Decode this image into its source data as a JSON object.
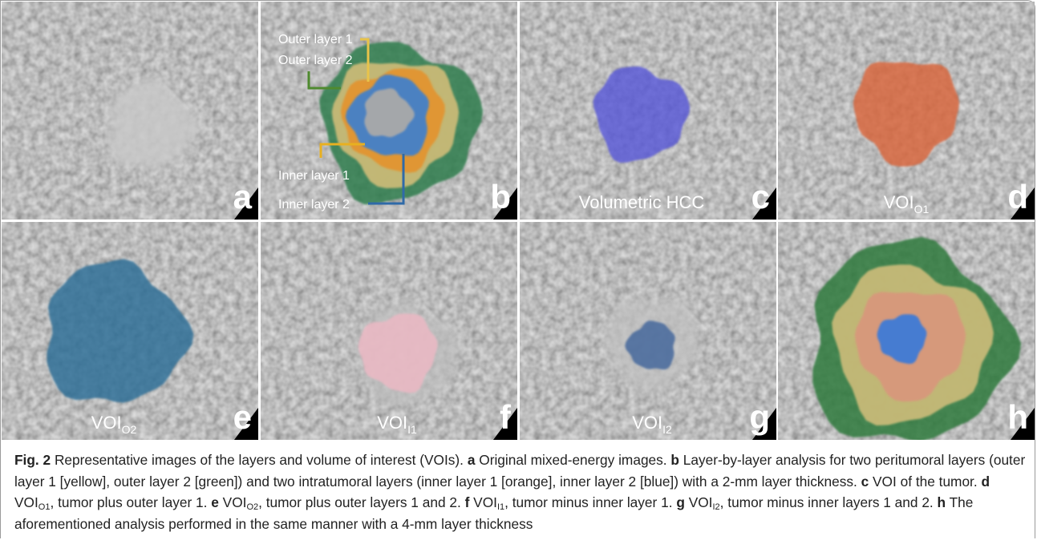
{
  "figure": {
    "panels": [
      {
        "letter": "a"
      },
      {
        "letter": "b",
        "annotations": [
          "Outer layer 1",
          "Outer layer 2",
          "Inner layer 1",
          "Inner layer 2"
        ]
      },
      {
        "letter": "c",
        "label": "Volumetric HCC"
      },
      {
        "letter": "d",
        "label": {
          "base": "VOI",
          "sub": "O1"
        }
      },
      {
        "letter": "e",
        "label": {
          "base": "VOI",
          "sub": "O2"
        }
      },
      {
        "letter": "f",
        "label": {
          "base": "VOI",
          "sub": "I1"
        }
      },
      {
        "letter": "g",
        "label": {
          "base": "VOI",
          "sub": "I2"
        }
      },
      {
        "letter": "h"
      }
    ]
  },
  "caption": {
    "label": "Fig. 2",
    "intro": "Representative images of the layers and volume of interest (VOIs).",
    "items": [
      {
        "letter": "a",
        "text": "Original mixed-energy images."
      },
      {
        "letter": "b",
        "text": "Layer-by-layer analysis for two peritumoral layers (outer layer 1 [yellow], outer layer 2 [green]) and two intratumoral layers (inner layer 1 [orange], inner layer 2 [blue]) with a 2-mm layer thickness."
      },
      {
        "letter": "c",
        "text": "VOI of the tumor."
      },
      {
        "letter": "d",
        "base": "VOI",
        "sub": "O1",
        "text": ", tumor plus outer layer 1."
      },
      {
        "letter": "e",
        "base": "VOI",
        "sub": "O2",
        "text": ", tumor plus outer layers 1 and 2."
      },
      {
        "letter": "f",
        "base": "VOI",
        "sub": "I1",
        "text": ", tumor minus inner layer 1."
      },
      {
        "letter": "g",
        "base": "VOI",
        "sub": "I2",
        "text": ", tumor minus inner layers 1 and 2."
      },
      {
        "letter": "h",
        "text": "The aforementioned analysis performed in the same manner with a 4-mm layer thickness"
      }
    ]
  }
}
